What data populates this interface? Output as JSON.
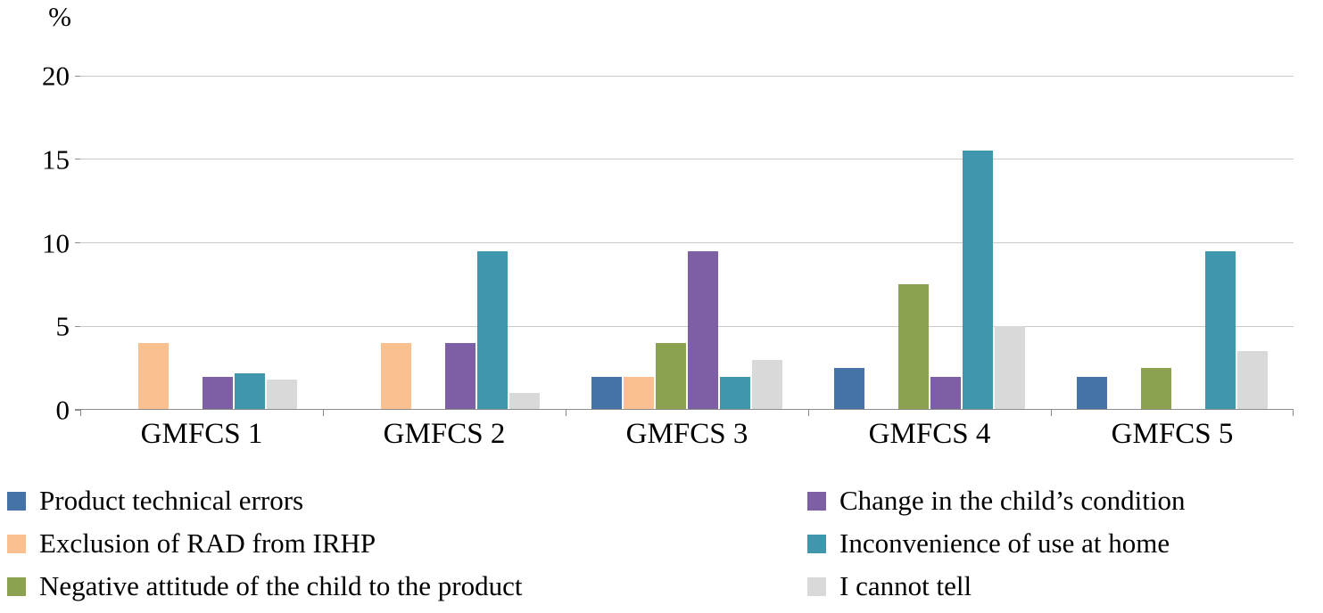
{
  "chart_data": {
    "type": "bar",
    "title": "",
    "xlabel": "",
    "ylabel": "%",
    "ylim": [
      0,
      20
    ],
    "yticks": [
      0,
      5,
      10,
      15,
      20
    ],
    "grid": true,
    "legend_position": "bottom",
    "legend_columns": 2,
    "categories": [
      "GMFCS 1",
      "GMFCS 2",
      "GMFCS 3",
      "GMFCS 4",
      "GMFCS 5"
    ],
    "series": [
      {
        "name": "Product technical errors",
        "color": "#4573a7",
        "values": [
          0,
          0,
          2,
          2.5,
          2
        ]
      },
      {
        "name": "Exclusion of RAD from IRHP",
        "color": "#fac090",
        "values": [
          4,
          4,
          2,
          0,
          0
        ]
      },
      {
        "name": "Negative attitude of the child to the product",
        "color": "#8ba350",
        "values": [
          0,
          0,
          4,
          7.5,
          2.5
        ]
      },
      {
        "name": "Change in the child’s condition",
        "color": "#7d5fa5",
        "values": [
          2,
          4,
          9.5,
          2,
          0
        ]
      },
      {
        "name": "Inconvenience of use at home",
        "color": "#3f96ad",
        "values": [
          2.2,
          9.5,
          2,
          15.5,
          9.5
        ]
      },
      {
        "name": "I cannot tell",
        "color": "#d9d9d9",
        "values": [
          1.8,
          1,
          3,
          5,
          3.5
        ]
      }
    ],
    "legend_column_assignment": [
      [
        0,
        1,
        2
      ],
      [
        3,
        4,
        5
      ]
    ]
  }
}
